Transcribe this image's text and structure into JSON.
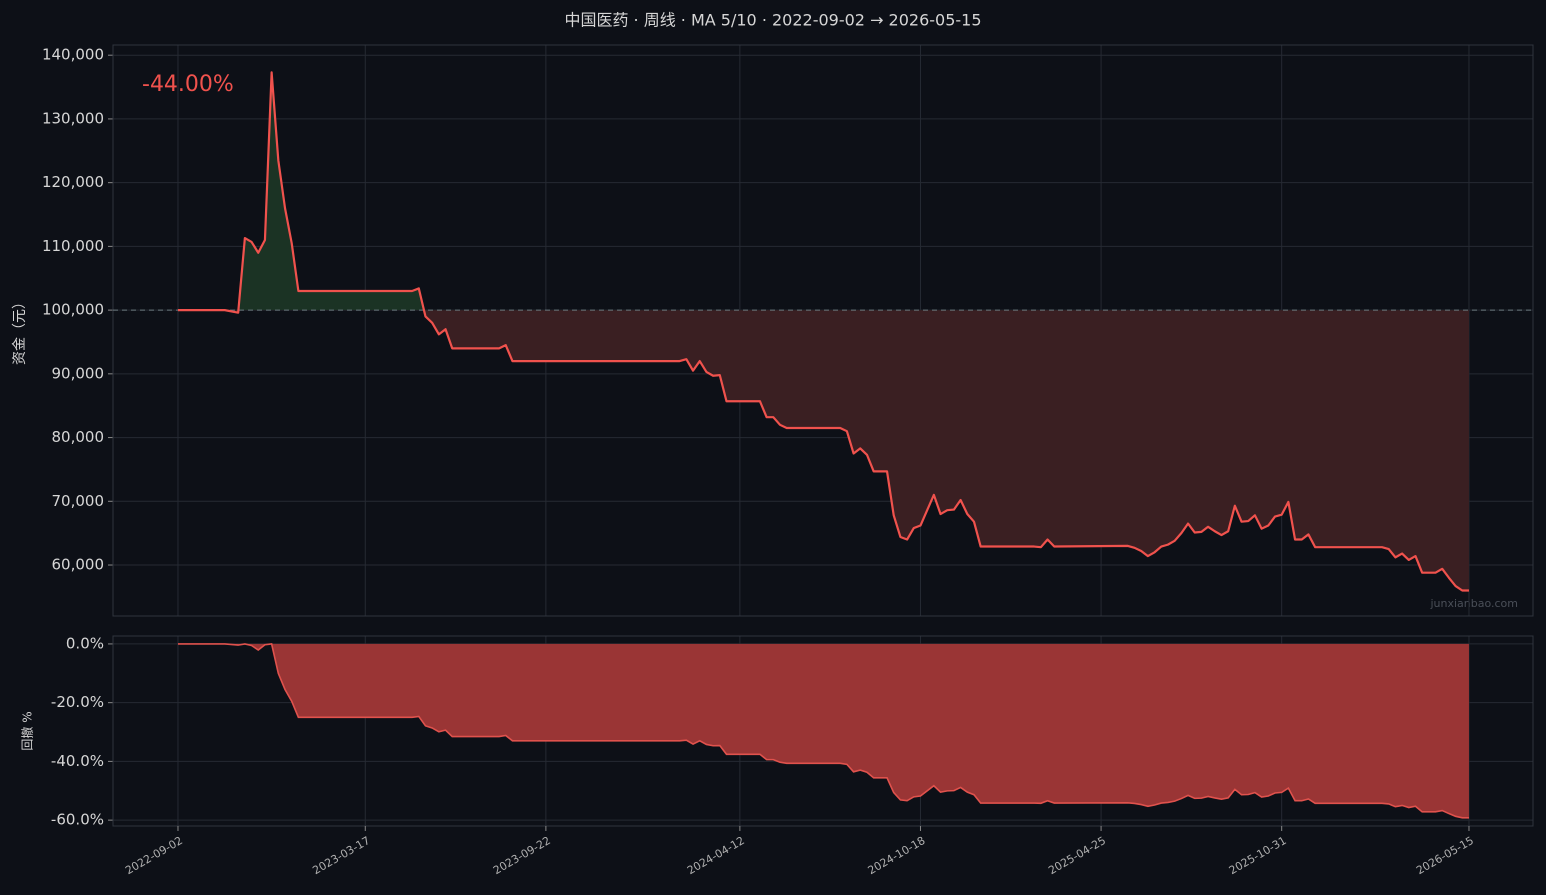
{
  "chart_data": [
    {
      "type": "line",
      "title": "中国医药 · 周线 · MA 5/10 · 2022-09-02 → 2026-05-15",
      "annotation": "-44.00%",
      "watermark": "junxianbao.com",
      "y_label": "资金（元）",
      "baseline": 100000,
      "x": [
        "2022-09-02",
        "2022-10-21",
        "2022-11-04",
        "2022-11-11",
        "2022-11-18",
        "2022-11-25",
        "2022-12-02",
        "2022-12-09",
        "2022-12-16",
        "2022-12-23",
        "2022-12-30",
        "2023-01-06",
        "2023-05-05",
        "2023-05-12",
        "2023-05-19",
        "2023-05-26",
        "2023-06-02",
        "2023-06-09",
        "2023-06-16",
        "2023-08-04",
        "2023-08-11",
        "2023-08-18",
        "2024-02-09",
        "2024-02-16",
        "2024-02-23",
        "2024-03-01",
        "2024-03-08",
        "2024-03-15",
        "2024-03-22",
        "2024-03-29",
        "2024-05-03",
        "2024-05-10",
        "2024-05-17",
        "2024-05-24",
        "2024-05-31",
        "2024-07-26",
        "2024-08-02",
        "2024-08-09",
        "2024-08-16",
        "2024-08-23",
        "2024-08-30",
        "2024-09-13",
        "2024-09-20",
        "2024-09-27",
        "2024-10-04",
        "2024-10-11",
        "2024-10-18",
        "2024-11-01",
        "2024-11-08",
        "2024-11-15",
        "2024-11-22",
        "2024-11-29",
        "2024-12-06",
        "2024-12-13",
        "2024-12-20",
        "2025-02-14",
        "2025-02-21",
        "2025-02-28",
        "2025-03-07",
        "2025-05-23",
        "2025-05-30",
        "2025-06-06",
        "2025-06-13",
        "2025-06-20",
        "2025-06-27",
        "2025-07-04",
        "2025-07-11",
        "2025-07-18",
        "2025-07-25",
        "2025-08-01",
        "2025-08-08",
        "2025-08-15",
        "2025-08-22",
        "2025-08-29",
        "2025-09-05",
        "2025-09-12",
        "2025-09-19",
        "2025-09-26",
        "2025-10-03",
        "2025-10-10",
        "2025-10-17",
        "2025-10-24",
        "2025-10-31",
        "2025-11-07",
        "2025-11-14",
        "2025-11-21",
        "2025-11-28",
        "2025-12-05",
        "2026-02-13",
        "2026-02-20",
        "2026-02-27",
        "2026-03-06",
        "2026-03-13",
        "2026-03-20",
        "2026-03-27",
        "2026-04-10",
        "2026-04-17",
        "2026-04-24",
        "2026-05-01",
        "2026-05-08",
        "2026-05-15"
      ],
      "values": [
        100000,
        100000,
        99600,
        111300,
        110700,
        109000,
        111000,
        137300,
        123500,
        116000,
        110500,
        103000,
        103000,
        103400,
        99000,
        98000,
        96200,
        97000,
        94000,
        94000,
        94500,
        92000,
        92000,
        92300,
        90500,
        92000,
        90300,
        89700,
        89800,
        85700,
        85700,
        83200,
        83200,
        82000,
        81500,
        81500,
        81000,
        77500,
        78300,
        77300,
        74700,
        74700,
        67800,
        64400,
        64000,
        65800,
        66200,
        71000,
        68000,
        68600,
        68700,
        70200,
        68000,
        66800,
        62900,
        62900,
        62800,
        64000,
        62900,
        63000,
        62700,
        62200,
        61400,
        62000,
        62900,
        63200,
        63800,
        65000,
        66500,
        65100,
        65200,
        66000,
        65300,
        64700,
        65300,
        69300,
        66800,
        66900,
        67800,
        65700,
        66200,
        67600,
        67900,
        69900,
        64000,
        64000,
        64800,
        62800,
        62800,
        62500,
        61200,
        61800,
        60800,
        61400,
        58800,
        58800,
        59400,
        58000,
        56700,
        56000,
        56000
      ],
      "color": "#f0524d",
      "fill_above": "#1b3324",
      "fill_below": "#3a1f22",
      "ylim": [
        52000,
        141600
      ],
      "yticks": [
        {
          "value": 60000,
          "label": "60,000"
        },
        {
          "value": 70000,
          "label": "70,000"
        },
        {
          "value": 80000,
          "label": "80,000"
        },
        {
          "value": 90000,
          "label": "90,000"
        },
        {
          "value": 100000,
          "label": "100,000"
        },
        {
          "value": 110000,
          "label": "110,000"
        },
        {
          "value": 120000,
          "label": "120,000"
        },
        {
          "value": 130000,
          "label": "130,000"
        },
        {
          "value": 140000,
          "label": "140,000"
        }
      ],
      "grid": true
    },
    {
      "type": "area",
      "y_label": "回撤 %",
      "x": [
        "2022-09-02",
        "2022-10-21",
        "2022-11-04",
        "2022-11-11",
        "2022-11-18",
        "2022-11-25",
        "2022-12-02",
        "2022-12-09",
        "2022-12-16",
        "2022-12-23",
        "2022-12-30",
        "2023-01-06",
        "2023-05-05",
        "2023-05-12",
        "2023-05-19",
        "2023-05-26",
        "2023-06-02",
        "2023-06-09",
        "2023-06-16",
        "2023-08-04",
        "2023-08-11",
        "2023-08-18",
        "2024-02-09",
        "2024-02-16",
        "2024-02-23",
        "2024-03-01",
        "2024-03-08",
        "2024-03-15",
        "2024-03-22",
        "2024-03-29",
        "2024-05-03",
        "2024-05-10",
        "2024-05-17",
        "2024-05-24",
        "2024-05-31",
        "2024-07-26",
        "2024-08-02",
        "2024-08-09",
        "2024-08-16",
        "2024-08-23",
        "2024-08-30",
        "2024-09-13",
        "2024-09-20",
        "2024-09-27",
        "2024-10-04",
        "2024-10-11",
        "2024-10-18",
        "2024-11-01",
        "2024-11-08",
        "2024-11-15",
        "2024-11-22",
        "2024-11-29",
        "2024-12-06",
        "2024-12-13",
        "2024-12-20",
        "2025-02-14",
        "2025-02-21",
        "2025-02-28",
        "2025-03-07",
        "2025-05-23",
        "2025-05-30",
        "2025-06-06",
        "2025-06-13",
        "2025-06-20",
        "2025-06-27",
        "2025-07-04",
        "2025-07-11",
        "2025-07-18",
        "2025-07-25",
        "2025-08-01",
        "2025-08-08",
        "2025-08-15",
        "2025-08-22",
        "2025-08-29",
        "2025-09-05",
        "2025-09-12",
        "2025-09-19",
        "2025-09-26",
        "2025-10-03",
        "2025-10-10",
        "2025-10-17",
        "2025-10-24",
        "2025-10-31",
        "2025-11-07",
        "2025-11-14",
        "2025-11-21",
        "2025-11-28",
        "2025-12-05",
        "2026-02-13",
        "2026-02-20",
        "2026-02-27",
        "2026-03-06",
        "2026-03-13",
        "2026-03-20",
        "2026-03-27",
        "2026-04-10",
        "2026-04-17",
        "2026-04-24",
        "2026-05-01",
        "2026-05-08",
        "2026-05-15"
      ],
      "values": [
        0,
        0,
        -0.4,
        0,
        -0.54,
        -2.07,
        -0.27,
        0,
        -10.05,
        -15.51,
        -19.52,
        -24.98,
        -24.98,
        -24.69,
        -27.89,
        -28.62,
        -29.93,
        -29.35,
        -31.54,
        -31.54,
        -31.17,
        -32.99,
        -32.99,
        -32.77,
        -34.09,
        -32.99,
        -34.23,
        -34.67,
        -34.6,
        -37.58,
        -37.58,
        -39.4,
        -39.4,
        -40.28,
        -40.64,
        -40.64,
        -41,
        -43.55,
        -42.97,
        -43.7,
        -45.59,
        -45.59,
        -50.62,
        -53.1,
        -53.39,
        -52.08,
        -51.78,
        -48.29,
        -50.47,
        -50.04,
        -49.96,
        -48.87,
        -50.47,
        -51.35,
        -54.19,
        -54.19,
        -54.26,
        -53.39,
        -54.19,
        -54.12,
        -54.33,
        -54.7,
        -55.28,
        -54.84,
        -54.19,
        -53.97,
        -53.53,
        -52.66,
        -51.57,
        -52.59,
        -52.51,
        -51.93,
        -52.44,
        -52.88,
        -52.44,
        -49.53,
        -51.35,
        -51.27,
        -50.62,
        -52.15,
        -51.78,
        -50.76,
        -50.55,
        -49.09,
        -53.39,
        -53.39,
        -52.8,
        -54.26,
        -54.26,
        -54.48,
        -55.43,
        -54.99,
        -55.72,
        -55.28,
        -57.17,
        -57.17,
        -56.74,
        -57.76,
        -58.7,
        -59.21,
        -59.21
      ],
      "color": "#e0524d",
      "fill": "#9a3535",
      "ylim": [
        -62,
        2.7
      ],
      "yticks": [
        {
          "value": -60,
          "label": "-60.0%"
        },
        {
          "value": -40,
          "label": "-40.0%"
        },
        {
          "value": -20,
          "label": "-20.0%"
        },
        {
          "value": 0,
          "label": "0.0%"
        }
      ],
      "xlim": [
        "2022-06-26",
        "2026-07-21"
      ],
      "xticks": [
        "2022-09-02",
        "2023-03-17",
        "2023-09-22",
        "2024-04-12",
        "2024-10-18",
        "2025-04-25",
        "2025-10-31",
        "2026-05-15"
      ],
      "grid": true
    }
  ]
}
